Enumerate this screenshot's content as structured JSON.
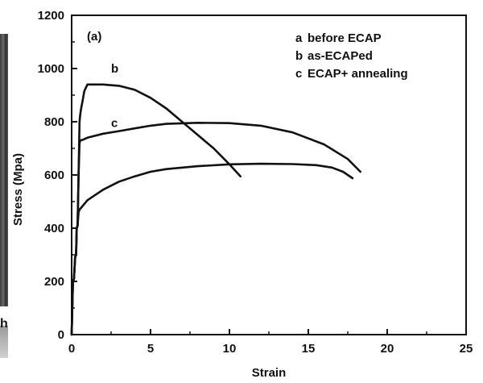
{
  "chart_data": {
    "type": "line",
    "panel_label": "(a)",
    "xlabel": "Strain",
    "ylabel": "Stress (Mpa)",
    "xlim": [
      0,
      25
    ],
    "ylim": [
      0,
      1200
    ],
    "xticks": [
      0,
      5,
      10,
      15,
      20,
      25
    ],
    "yticks": [
      0,
      200,
      400,
      600,
      800,
      1000,
      1200
    ],
    "legend": {
      "placement": "top-right",
      "entries": [
        {
          "key": "a",
          "text": "before ECAP"
        },
        {
          "key": "b",
          "text": "as-ECAPed"
        },
        {
          "key": "c",
          "text": "ECAP+ annealing"
        }
      ]
    },
    "series": [
      {
        "name": "a",
        "label_pos": [
          0,
          0
        ],
        "color": "#111111",
        "x": [
          0.0,
          0.08,
          0.15,
          0.22,
          0.28,
          0.32,
          0.38,
          0.44,
          0.5,
          0.65,
          1.0,
          2.0,
          3.0,
          4.0,
          5.0,
          6.0,
          8.0,
          10.0,
          12.0,
          14.0,
          15.5,
          16.5,
          17.2,
          17.8
        ],
        "y": [
          0,
          200,
          210,
          290,
          300,
          400,
          410,
          460,
          470,
          480,
          505,
          545,
          575,
          595,
          612,
          622,
          633,
          640,
          642,
          641,
          637,
          628,
          612,
          588
        ]
      },
      {
        "name": "b",
        "label_pos": [
          2.5,
          985
        ],
        "color": "#111111",
        "x": [
          0.0,
          0.08,
          0.15,
          0.22,
          0.28,
          0.32,
          0.38,
          0.44,
          0.5,
          0.55,
          0.6,
          0.7,
          0.8,
          1.0,
          2.0,
          3.0,
          4.0,
          5.0,
          6.0,
          7.0,
          8.0,
          9.0,
          10.0,
          10.7
        ],
        "y": [
          0,
          200,
          210,
          290,
          300,
          400,
          410,
          600,
          800,
          830,
          850,
          880,
          915,
          940,
          940,
          935,
          920,
          890,
          850,
          800,
          750,
          700,
          640,
          595
        ]
      },
      {
        "name": "c",
        "label_pos": [
          2.5,
          780
        ],
        "color": "#111111",
        "x": [
          0.0,
          0.08,
          0.15,
          0.22,
          0.28,
          0.32,
          0.38,
          0.44,
          0.5,
          0.55,
          0.7,
          1.0,
          2.0,
          3.0,
          4.0,
          5.0,
          6.0,
          8.0,
          10.0,
          12.0,
          14.0,
          16.0,
          17.5,
          18.3
        ],
        "y": [
          0,
          200,
          210,
          290,
          300,
          400,
          410,
          600,
          720,
          730,
          732,
          740,
          755,
          765,
          775,
          785,
          792,
          796,
          795,
          785,
          760,
          715,
          660,
          612
        ]
      }
    ]
  }
}
